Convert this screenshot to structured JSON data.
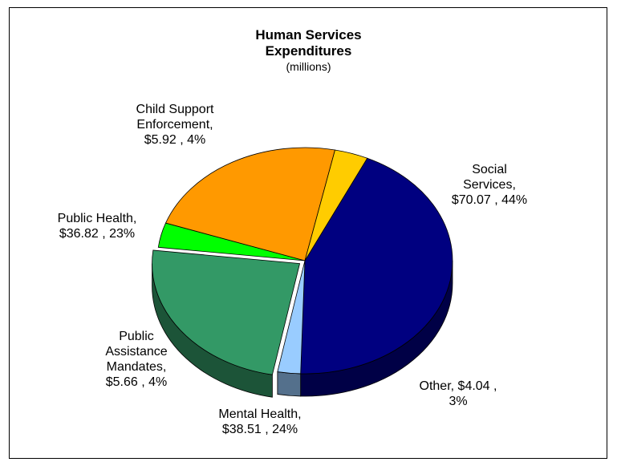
{
  "chart_data": {
    "type": "pie",
    "style": "3d",
    "title": "Human Services Expenditures",
    "subtitle": "(millions)",
    "slices": [
      {
        "label": "Social Services",
        "value": 70.07,
        "value_label": "$70.07",
        "percent_label": "44%",
        "color": "#000080"
      },
      {
        "label": "Other",
        "value": 4.04,
        "value_label": "$4.04",
        "percent_label": "3%",
        "color": "#99CCFF"
      },
      {
        "label": "Mental Health",
        "value": 38.51,
        "value_label": "$38.51",
        "percent_label": "24%",
        "color": "#339966"
      },
      {
        "label": "Public Assistance Mandates",
        "value": 5.66,
        "value_label": "$5.66",
        "percent_label": "4%",
        "color": "#00FF00"
      },
      {
        "label": "Public Health",
        "value": 36.82,
        "value_label": "$36.82",
        "percent_label": "23%",
        "color": "#FF9900"
      },
      {
        "label": "Child Support Enforcement",
        "value": 5.92,
        "value_label": "$5.92",
        "percent_label": "4%",
        "color": "#FFCC00"
      }
    ],
    "data_labels": [
      {
        "lines": [
          "Social",
          "Services,",
          "$70.07 , 44%"
        ]
      },
      {
        "lines": [
          "Other,  $4.04 ,",
          "3%"
        ]
      },
      {
        "lines": [
          "Mental Health,",
          "$38.51 , 24%"
        ]
      },
      {
        "lines": [
          "Public",
          "Assistance",
          "Mandates,",
          "$5.66 , 4%"
        ]
      },
      {
        "lines": [
          "Public Health,",
          "$36.82 , 23%"
        ]
      },
      {
        "lines": [
          "Child Support",
          "Enforcement,",
          "$5.92 , 4%"
        ]
      }
    ]
  }
}
